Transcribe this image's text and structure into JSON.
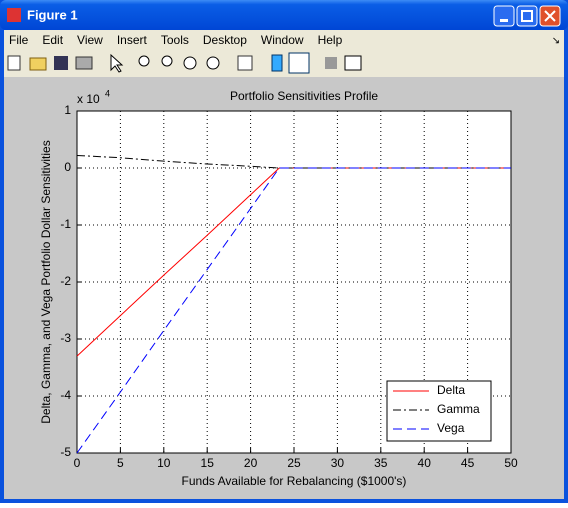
{
  "window": {
    "title": "Figure 1",
    "menu": [
      "File",
      "Edit",
      "View",
      "Insert",
      "Tools",
      "Desktop",
      "Window",
      "Help"
    ]
  },
  "chart_data": {
    "type": "line",
    "title": "Portfolio Sensitivities Profile",
    "x_label": "Funds Available for Rebalancing ($1000's)",
    "y_label": "Delta, Gamma, and Vega Portfolio Dollar Sensitivities",
    "y_multiplier": {
      "base": "x 10",
      "exponent": "4"
    },
    "x": [
      0,
      5,
      10,
      15,
      20,
      23.3,
      50
    ],
    "series": [
      {
        "name": "Delta",
        "color": "#ff0000",
        "line_style": "solid",
        "values": [
          -3.3,
          -2.59,
          -1.88,
          -1.18,
          -0.47,
          0,
          0
        ]
      },
      {
        "name": "Gamma",
        "color": "#000000",
        "line_style": "dash-dot",
        "values": [
          0.22,
          0.18,
          0.12,
          0.07,
          0.03,
          0,
          0
        ]
      },
      {
        "name": "Vega",
        "color": "#0000ff",
        "line_style": "dashed",
        "values": [
          -5,
          -3.93,
          -2.85,
          -1.78,
          -0.71,
          0,
          0
        ]
      }
    ],
    "xlim": [
      0,
      50
    ],
    "xticks": [
      0,
      5,
      10,
      15,
      20,
      25,
      30,
      35,
      40,
      45,
      50
    ],
    "ylim": [
      -5,
      1
    ],
    "yticks": [
      1,
      0,
      -1,
      -2,
      -3,
      -4,
      -5
    ],
    "grid": true,
    "legend": "lower right"
  }
}
